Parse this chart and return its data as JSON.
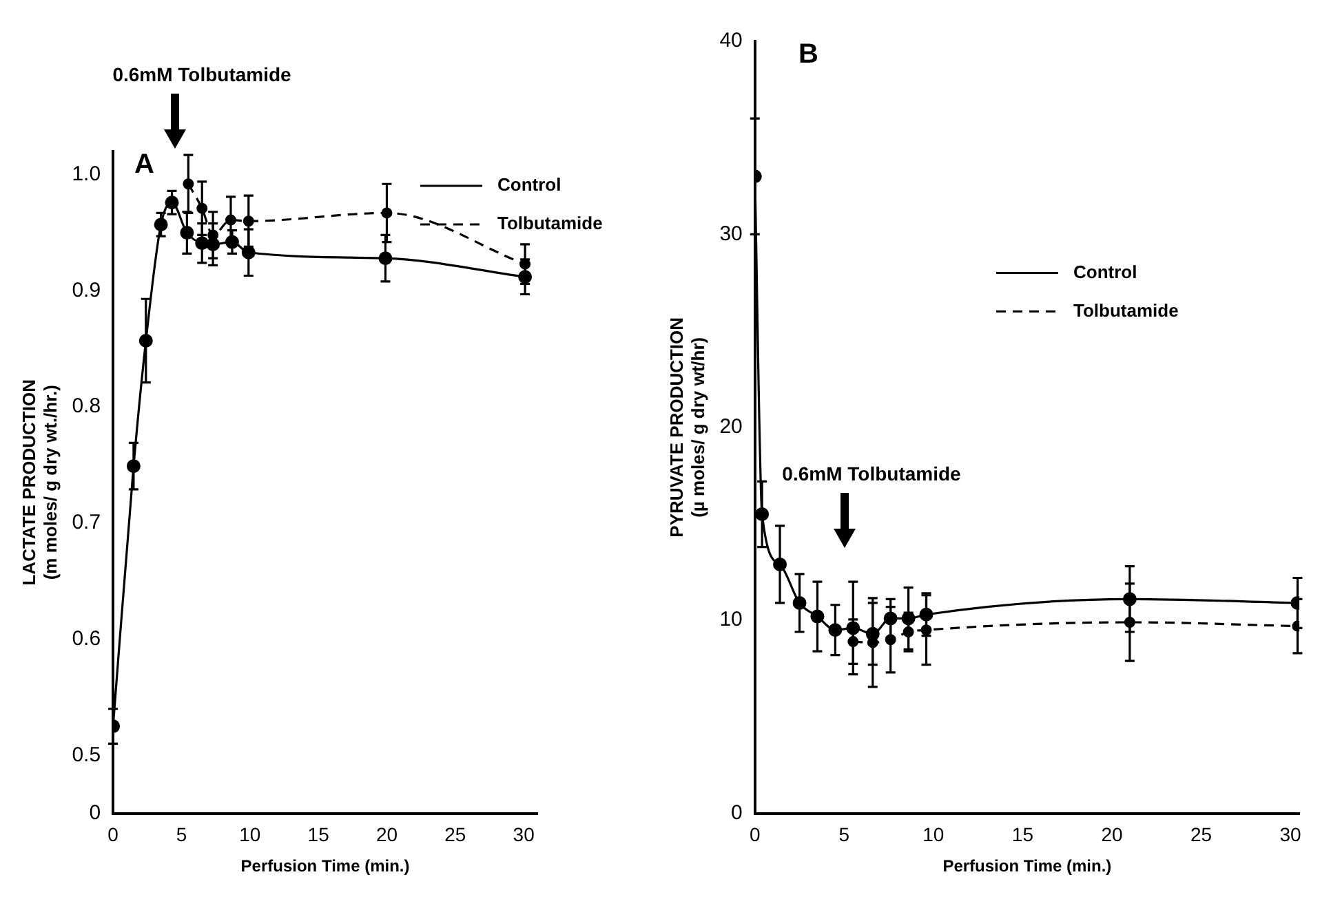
{
  "chart_data": [
    {
      "type": "line",
      "xlabel": "Perfusion Time (min.)",
      "ylabel": "LACTATE PRODUCTION\n(m moles/ g dry wt./hr.)",
      "xlim": [
        0,
        31
      ],
      "xticks": [
        0,
        5,
        10,
        15,
        20,
        25,
        30
      ],
      "ylim": [
        0.45,
        1.02
      ],
      "yticks": [
        {
          "value": 0.45,
          "label": "0"
        },
        0.5,
        0.6,
        0.7,
        0.8,
        0.9,
        {
          "value": 1.0,
          "label": "1.0"
        }
      ],
      "grid": false,
      "legend": "top right",
      "marker": "circle",
      "annotations": [
        "A",
        "0.6mM Tolbutamide"
      ],
      "series": [
        {
          "name": "Control",
          "color": "#000000",
          "line_style": "solid",
          "x": [
            0,
            1.5,
            2.4,
            3.5,
            4.3,
            5.4,
            6.5,
            7.3,
            8.7,
            9.9,
            19.9,
            30.1
          ],
          "values": [
            0.525,
            0.749,
            0.857,
            0.957,
            0.976,
            0.95,
            0.941,
            0.94,
            0.942,
            0.933,
            0.928,
            0.912
          ],
          "errors": [
            0.015,
            0.02,
            0.036,
            0.01,
            0.01,
            0.018,
            0.017,
            0.018,
            0.01,
            0.02,
            0.02,
            0.015
          ]
        },
        {
          "name": "Tolbutamide",
          "color": "#000000",
          "line_style": "dashed",
          "x": [
            5.5,
            6.5,
            7.3,
            8.6,
            9.9,
            20.0,
            30.1
          ],
          "values": [
            0.992,
            0.971,
            0.948,
            0.961,
            0.96,
            0.967,
            0.923
          ],
          "errors": [
            0.025,
            0.023,
            0.02,
            0.02,
            0.022,
            0.025,
            0.017
          ]
        }
      ]
    },
    {
      "type": "line",
      "xlabel": "Perfusion Time (min.)",
      "ylabel": "PYRUVATE PRODUCTION\n(µ moles/ g dry wt/hr)",
      "xlim": [
        0,
        30.5
      ],
      "xticks": [
        0,
        5,
        10,
        15,
        20,
        25,
        30
      ],
      "ylim": [
        0,
        40
      ],
      "yticks": [
        0,
        10,
        20,
        30,
        40
      ],
      "grid": false,
      "legend": "right",
      "marker": "circle",
      "annotations": [
        "B",
        "0.6mM Tolbutamide"
      ],
      "series": [
        {
          "name": "Control",
          "color": "#000000",
          "line_style": "solid",
          "x": [
            0,
            0.4,
            1.4,
            2.5,
            3.5,
            4.5,
            5.5,
            6.6,
            7.6,
            8.6,
            9.6,
            21.0,
            30.4
          ],
          "values": [
            33,
            15.5,
            12.9,
            10.9,
            10.2,
            9.5,
            9.6,
            9.3,
            10.1,
            10.1,
            10.3,
            11.1,
            10.9
          ],
          "errors": [
            3,
            1.7,
            2,
            1.5,
            1.8,
            1.3,
            2.4,
            1.6,
            1,
            1.6,
            1.1,
            1.7,
            1.3
          ]
        },
        {
          "name": "Tolbutamide",
          "color": "#000000",
          "line_style": "dashed",
          "x": [
            5.5,
            6.6,
            7.6,
            8.6,
            9.6,
            21.0,
            30.4
          ],
          "values": [
            8.9,
            8.85,
            9.0,
            9.4,
            9.5,
            9.9,
            9.7
          ],
          "errors": [
            1.15,
            2.3,
            1.7,
            1,
            1.8,
            2,
            1.4
          ]
        }
      ]
    }
  ]
}
